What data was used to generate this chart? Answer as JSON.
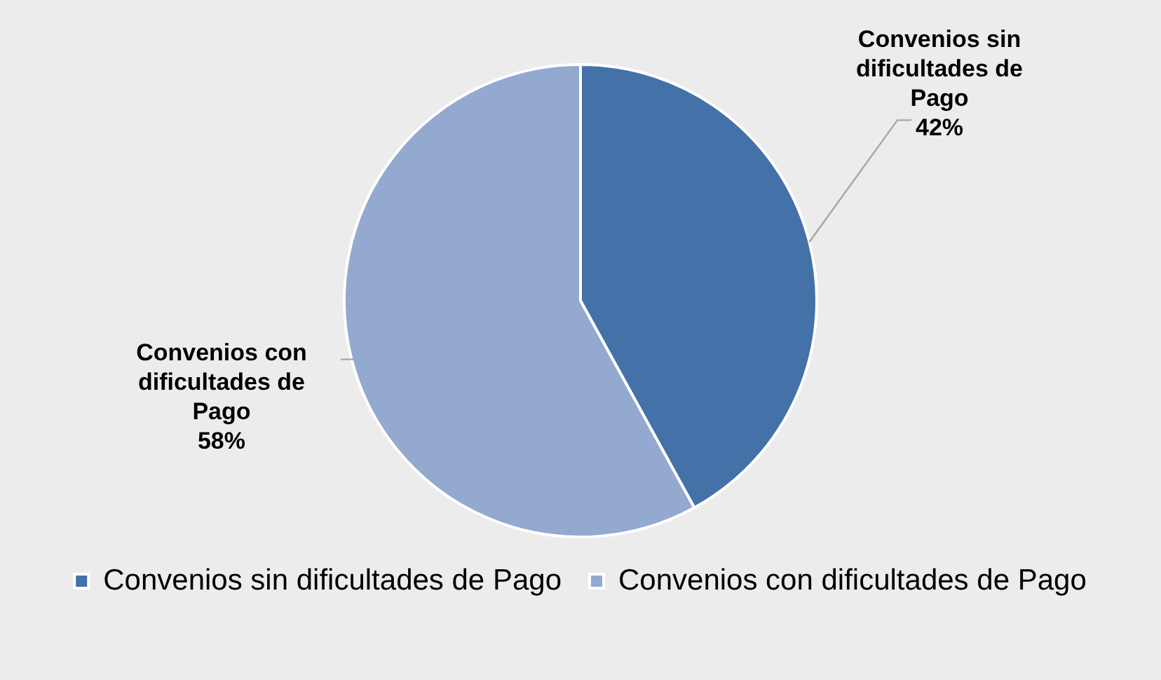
{
  "chart_data": {
    "type": "pie",
    "categories": [
      "Convenios sin dificultades de Pago",
      "Convenios con dificultades de Pago"
    ],
    "values": [
      42,
      58
    ],
    "colors": [
      "#4472a8",
      "#93a9cf"
    ],
    "value_labels": [
      "42%",
      "58%"
    ],
    "legend": "bottom"
  }
}
